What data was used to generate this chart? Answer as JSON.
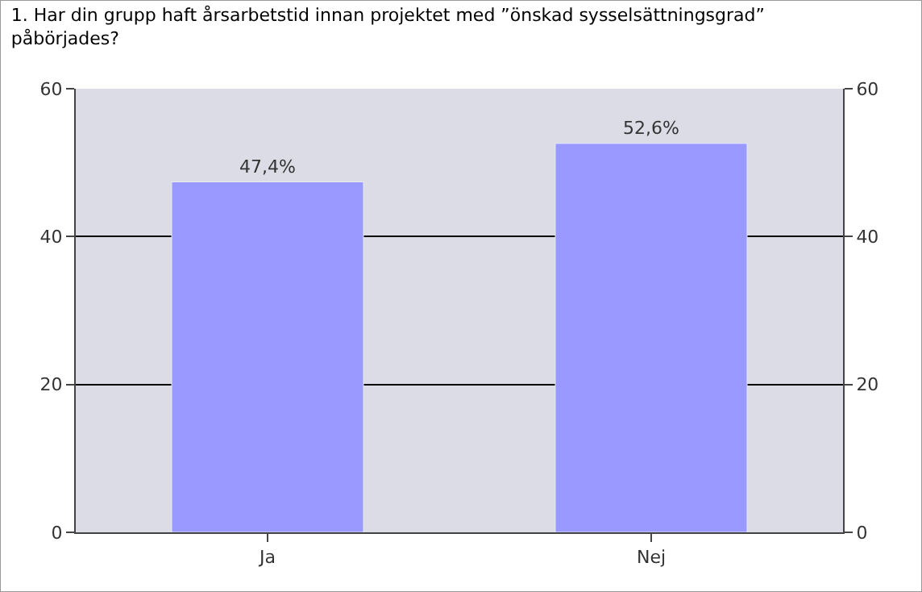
{
  "chart_data": {
    "type": "bar",
    "title": "1. Har din grupp haft årsarbetstid innan projektet med ”önskad sysselsättningsgrad”\npåbörjades?",
    "categories": [
      "Ja",
      "Nej"
    ],
    "values": [
      47.4,
      52.6
    ],
    "value_labels": [
      "47,4%",
      "52,6%"
    ],
    "color": "#9999ff",
    "ylim": [
      0,
      60
    ],
    "yticks": [
      0,
      20,
      40,
      60
    ],
    "y2lim": [
      0,
      60
    ],
    "y2ticks": [
      0,
      20,
      40,
      60
    ],
    "grid": "y",
    "legend": false
  }
}
